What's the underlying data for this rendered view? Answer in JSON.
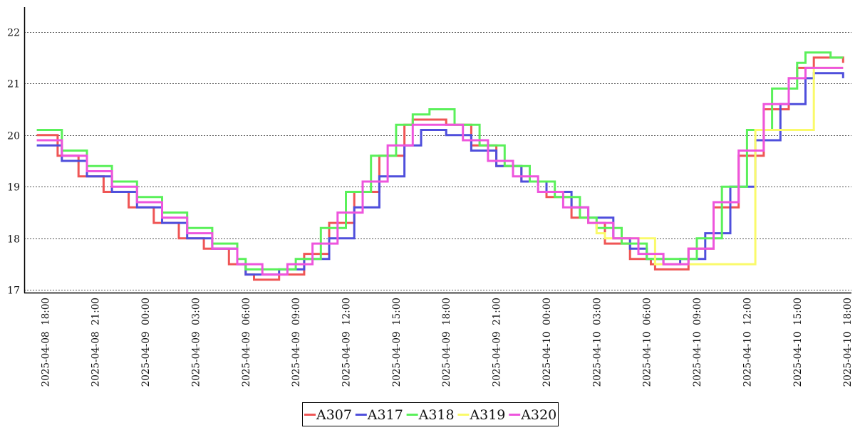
{
  "chart_data": {
    "type": "line",
    "title": "",
    "xlabel": "",
    "ylabel": "",
    "x_ticks": [
      "2025-04-08 18:00",
      "2025-04-08 21:00",
      "2025-04-09 00:00",
      "2025-04-09 03:00",
      "2025-04-09 06:00",
      "2025-04-09 09:00",
      "2025-04-09 12:00",
      "2025-04-09 15:00",
      "2025-04-09 18:00",
      "2025-04-09 21:00",
      "2025-04-10 00:00",
      "2025-04-10 03:00",
      "2025-04-10 06:00",
      "2025-04-10 09:00",
      "2025-04-10 12:00",
      "2025-04-10 15:00",
      "2025-04-10 18:00"
    ],
    "xlim": [
      "2025-04-08 16:45",
      "2025-04-10 18:15"
    ],
    "y_ticks": [
      17,
      18,
      19,
      20,
      21,
      22
    ],
    "ylim": [
      16.95,
      22.45
    ],
    "grid": "horizontal dotted",
    "legend_position": "bottom-center",
    "series": [
      {
        "name": "A307",
        "color": "#ef5555",
        "points": [
          [
            "2025-04-08 17:30",
            20.0
          ],
          [
            "2025-04-08 18:45",
            19.6
          ],
          [
            "2025-04-08 20:00",
            19.2
          ],
          [
            "2025-04-08 21:30",
            18.9
          ],
          [
            "2025-04-08 23:00",
            18.6
          ],
          [
            "2025-04-09 00:30",
            18.3
          ],
          [
            "2025-04-09 02:00",
            18.0
          ],
          [
            "2025-04-09 03:30",
            17.8
          ],
          [
            "2025-04-09 05:00",
            17.5
          ],
          [
            "2025-04-09 06:00",
            17.3
          ],
          [
            "2025-04-09 06:30",
            17.2
          ],
          [
            "2025-04-09 08:00",
            17.3
          ],
          [
            "2025-04-09 09:30",
            17.7
          ],
          [
            "2025-04-09 11:00",
            18.3
          ],
          [
            "2025-04-09 12:30",
            18.9
          ],
          [
            "2025-04-09 14:00",
            19.6
          ],
          [
            "2025-04-09 15:30",
            20.2
          ],
          [
            "2025-04-09 16:00",
            20.3
          ],
          [
            "2025-04-09 18:00",
            20.2
          ],
          [
            "2025-04-09 19:30",
            19.8
          ],
          [
            "2025-04-09 21:00",
            19.4
          ],
          [
            "2025-04-09 22:30",
            19.1
          ],
          [
            "2025-04-10 00:00",
            18.8
          ],
          [
            "2025-04-10 01:30",
            18.4
          ],
          [
            "2025-04-10 02:30",
            18.3
          ],
          [
            "2025-04-10 03:15",
            18.3
          ],
          [
            "2025-04-10 03:30",
            17.9
          ],
          [
            "2025-04-10 05:00",
            17.6
          ],
          [
            "2025-04-10 06:15",
            17.5
          ],
          [
            "2025-04-10 06:30",
            17.4
          ],
          [
            "2025-04-10 07:00",
            17.4
          ],
          [
            "2025-04-10 08:30",
            17.8
          ],
          [
            "2025-04-10 10:00",
            18.6
          ],
          [
            "2025-04-10 11:30",
            19.6
          ],
          [
            "2025-04-10 13:00",
            20.5
          ],
          [
            "2025-04-10 14:30",
            21.1
          ],
          [
            "2025-04-10 15:00",
            21.3
          ],
          [
            "2025-04-10 16:00",
            21.5
          ],
          [
            "2025-04-10 17:45",
            21.4
          ]
        ]
      },
      {
        "name": "A317",
        "color": "#4f4fdc",
        "points": [
          [
            "2025-04-08 17:30",
            19.8
          ],
          [
            "2025-04-08 19:00",
            19.5
          ],
          [
            "2025-04-08 20:30",
            19.2
          ],
          [
            "2025-04-08 22:00",
            18.9
          ],
          [
            "2025-04-08 23:30",
            18.6
          ],
          [
            "2025-04-09 01:00",
            18.3
          ],
          [
            "2025-04-09 02:30",
            18.0
          ],
          [
            "2025-04-09 04:00",
            17.8
          ],
          [
            "2025-04-09 05:30",
            17.5
          ],
          [
            "2025-04-09 06:00",
            17.3
          ],
          [
            "2025-04-09 07:00",
            17.3
          ],
          [
            "2025-04-09 08:00",
            17.4
          ],
          [
            "2025-04-09 09:30",
            17.6
          ],
          [
            "2025-04-09 11:00",
            18.0
          ],
          [
            "2025-04-09 12:30",
            18.6
          ],
          [
            "2025-04-09 14:00",
            19.2
          ],
          [
            "2025-04-09 15:30",
            19.8
          ],
          [
            "2025-04-09 16:30",
            20.1
          ],
          [
            "2025-04-09 18:00",
            20.0
          ],
          [
            "2025-04-09 19:30",
            19.7
          ],
          [
            "2025-04-09 21:00",
            19.4
          ],
          [
            "2025-04-09 22:30",
            19.1
          ],
          [
            "2025-04-10 00:00",
            18.9
          ],
          [
            "2025-04-10 01:30",
            18.6
          ],
          [
            "2025-04-10 02:30",
            18.4
          ],
          [
            "2025-04-10 04:00",
            18.0
          ],
          [
            "2025-04-10 05:00",
            17.8
          ],
          [
            "2025-04-10 06:00",
            17.6
          ],
          [
            "2025-04-10 07:00",
            17.5
          ],
          [
            "2025-04-10 08:00",
            17.6
          ],
          [
            "2025-04-10 09:30",
            18.1
          ],
          [
            "2025-04-10 11:00",
            19.0
          ],
          [
            "2025-04-10 12:30",
            19.9
          ],
          [
            "2025-04-10 14:00",
            20.6
          ],
          [
            "2025-04-10 15:30",
            21.1
          ],
          [
            "2025-04-10 16:00",
            21.2
          ],
          [
            "2025-04-10 17:45",
            21.1
          ]
        ]
      },
      {
        "name": "A318",
        "color": "#5af05a",
        "points": [
          [
            "2025-04-08 17:30",
            20.1
          ],
          [
            "2025-04-08 19:00",
            19.7
          ],
          [
            "2025-04-08 20:30",
            19.4
          ],
          [
            "2025-04-08 22:00",
            19.1
          ],
          [
            "2025-04-08 23:30",
            18.8
          ],
          [
            "2025-04-09 01:00",
            18.5
          ],
          [
            "2025-04-09 02:30",
            18.2
          ],
          [
            "2025-04-09 04:00",
            17.9
          ],
          [
            "2025-04-09 05:30",
            17.6
          ],
          [
            "2025-04-09 06:00",
            17.4
          ],
          [
            "2025-04-09 07:30",
            17.4
          ],
          [
            "2025-04-09 09:00",
            17.6
          ],
          [
            "2025-04-09 10:30",
            18.2
          ],
          [
            "2025-04-09 12:00",
            18.9
          ],
          [
            "2025-04-09 13:30",
            19.6
          ],
          [
            "2025-04-09 15:00",
            20.2
          ],
          [
            "2025-04-09 16:00",
            20.4
          ],
          [
            "2025-04-09 17:00",
            20.5
          ],
          [
            "2025-04-09 18:30",
            20.2
          ],
          [
            "2025-04-09 20:00",
            19.8
          ],
          [
            "2025-04-09 21:30",
            19.4
          ],
          [
            "2025-04-09 23:00",
            19.1
          ],
          [
            "2025-04-10 00:30",
            18.8
          ],
          [
            "2025-04-10 02:00",
            18.4
          ],
          [
            "2025-04-10 03:00",
            18.2
          ],
          [
            "2025-04-10 04:30",
            17.9
          ],
          [
            "2025-04-10 06:00",
            17.6
          ],
          [
            "2025-04-10 07:30",
            17.6
          ],
          [
            "2025-04-10 09:00",
            18.0
          ],
          [
            "2025-04-10 10:30",
            19.0
          ],
          [
            "2025-04-10 12:00",
            20.1
          ],
          [
            "2025-04-10 13:30",
            20.9
          ],
          [
            "2025-04-10 15:00",
            21.4
          ],
          [
            "2025-04-10 15:30",
            21.6
          ],
          [
            "2025-04-10 16:30",
            21.6
          ],
          [
            "2025-04-10 17:00",
            21.5
          ],
          [
            "2025-04-10 17:45",
            21.5
          ]
        ]
      },
      {
        "name": "A319",
        "color": "#fafa6a",
        "points": [
          [
            "2025-04-10 02:30",
            18.3
          ],
          [
            "2025-04-10 03:00",
            18.1
          ],
          [
            "2025-04-10 03:30",
            18.0
          ],
          [
            "2025-04-10 06:30",
            17.5
          ],
          [
            "2025-04-10 12:30",
            20.1
          ],
          [
            "2025-04-10 15:45",
            20.1
          ],
          [
            "2025-04-10 16:00",
            21.3
          ],
          [
            "2025-04-10 17:45",
            21.3
          ]
        ]
      },
      {
        "name": "A320",
        "color": "#ee55dd",
        "points": [
          [
            "2025-04-08 17:30",
            19.9
          ],
          [
            "2025-04-08 19:00",
            19.6
          ],
          [
            "2025-04-08 20:30",
            19.3
          ],
          [
            "2025-04-08 22:00",
            19.0
          ],
          [
            "2025-04-08 23:30",
            18.7
          ],
          [
            "2025-04-09 01:00",
            18.4
          ],
          [
            "2025-04-09 02:30",
            18.1
          ],
          [
            "2025-04-09 04:00",
            17.8
          ],
          [
            "2025-04-09 05:30",
            17.5
          ],
          [
            "2025-04-09 07:00",
            17.3
          ],
          [
            "2025-04-09 08:30",
            17.5
          ],
          [
            "2025-04-09 10:00",
            17.9
          ],
          [
            "2025-04-09 11:30",
            18.5
          ],
          [
            "2025-04-09 13:00",
            19.1
          ],
          [
            "2025-04-09 14:30",
            19.8
          ],
          [
            "2025-04-09 16:00",
            20.2
          ],
          [
            "2025-04-09 17:30",
            20.2
          ],
          [
            "2025-04-09 19:00",
            19.9
          ],
          [
            "2025-04-09 20:30",
            19.5
          ],
          [
            "2025-04-09 22:00",
            19.2
          ],
          [
            "2025-04-09 23:30",
            18.9
          ],
          [
            "2025-04-10 01:00",
            18.6
          ],
          [
            "2025-04-10 02:30",
            18.3
          ],
          [
            "2025-04-10 04:00",
            18.0
          ],
          [
            "2025-04-10 05:30",
            17.7
          ],
          [
            "2025-04-10 07:00",
            17.5
          ],
          [
            "2025-04-10 08:30",
            17.8
          ],
          [
            "2025-04-10 10:00",
            18.7
          ],
          [
            "2025-04-10 11:30",
            19.7
          ],
          [
            "2025-04-10 13:00",
            20.6
          ],
          [
            "2025-04-10 14:30",
            21.1
          ],
          [
            "2025-04-10 15:30",
            21.3
          ],
          [
            "2025-04-10 17:45",
            21.3
          ]
        ]
      }
    ]
  }
}
